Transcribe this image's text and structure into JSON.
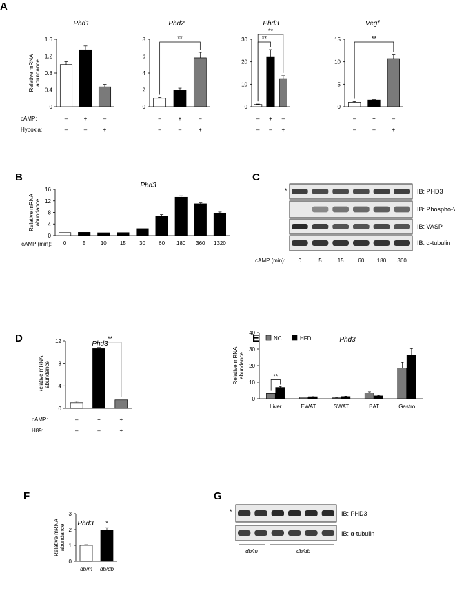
{
  "panels": {
    "A": "A",
    "B": "B",
    "C": "C",
    "D": "D",
    "E": "E",
    "F": "F",
    "G": "G"
  },
  "colors": {
    "ctrl": "#ffffff",
    "camp": "#000000",
    "hypoxia": "#7a7a7a",
    "nc": "#7a7a7a",
    "hfd": "#000000"
  },
  "chart_data": [
    {
      "id": "A1",
      "type": "bar",
      "title": "Phd1",
      "ylabel": "Relative mRNA abundance",
      "ylim": [
        0,
        1.6
      ],
      "yticks": [
        "0",
        "0.4",
        "0.8",
        "1.2",
        "1.6"
      ],
      "values": [
        1.0,
        1.35,
        0.47
      ],
      "errors": [
        0.07,
        0.09,
        0.06
      ],
      "fills": [
        "ctrl",
        "camp",
        "hypoxia"
      ],
      "sig": []
    },
    {
      "id": "A2",
      "type": "bar",
      "title": "Phd2",
      "ylim": [
        0,
        8
      ],
      "yticks": [
        "0",
        "2",
        "4",
        "6",
        "8"
      ],
      "values": [
        1.0,
        1.95,
        5.8
      ],
      "errors": [
        0.1,
        0.25,
        0.65
      ],
      "fills": [
        "ctrl",
        "camp",
        "hypoxia"
      ],
      "sig": [
        {
          "from": 0,
          "to": 2,
          "text": "**"
        }
      ]
    },
    {
      "id": "A3",
      "type": "bar",
      "title": "Phd3",
      "ylim": [
        0,
        30
      ],
      "yticks": [
        "0",
        "10",
        "20",
        "30"
      ],
      "values": [
        1.0,
        22.0,
        12.5
      ],
      "errors": [
        0.2,
        3.4,
        1.3
      ],
      "fills": [
        "ctrl",
        "camp",
        "hypoxia"
      ],
      "sig": [
        {
          "from": 0,
          "to": 1,
          "text": "**"
        },
        {
          "from": 0,
          "to": 2,
          "text": "**"
        }
      ]
    },
    {
      "id": "A4",
      "type": "bar",
      "title": "Vegf",
      "ylim": [
        0,
        15
      ],
      "yticks": [
        "0",
        "5",
        "10",
        "15"
      ],
      "values": [
        1.0,
        1.5,
        10.7
      ],
      "errors": [
        0.15,
        0.1,
        0.85
      ],
      "fills": [
        "ctrl",
        "camp",
        "hypoxia"
      ],
      "sig": [
        {
          "from": 0,
          "to": 2,
          "text": "**"
        }
      ]
    },
    {
      "id": "B",
      "type": "bar",
      "title": "Phd3",
      "ylabel": "Relative mRNA abundance",
      "ylim": [
        0,
        16
      ],
      "yticks": [
        "0",
        "4",
        "8",
        "12",
        "16"
      ],
      "xlabel": "cAMP (min):",
      "categories": [
        "0",
        "5",
        "10",
        "15",
        "30",
        "60",
        "180",
        "360",
        "1320"
      ],
      "values": [
        1.0,
        1.1,
        0.95,
        1.0,
        2.4,
        6.8,
        13.3,
        11.0,
        7.8
      ],
      "errors": [
        0,
        0,
        0,
        0,
        0,
        0.45,
        0.5,
        0.3,
        0.35
      ],
      "fills": [
        "ctrl",
        "camp",
        "camp",
        "camp",
        "camp",
        "camp",
        "camp",
        "camp",
        "camp"
      ]
    },
    {
      "id": "D",
      "type": "bar",
      "title": "Phd3",
      "ylabel": "Relative mRNA abundance",
      "ylim": [
        0,
        12
      ],
      "yticks": [
        "0",
        "4",
        "8",
        "12"
      ],
      "values": [
        1.0,
        10.6,
        1.5
      ],
      "errors": [
        0.25,
        0.2,
        0
      ],
      "fills": [
        "ctrl",
        "camp",
        "hypoxia"
      ],
      "sig": [
        {
          "from": 1,
          "to": 2,
          "text": "**"
        }
      ]
    },
    {
      "id": "E",
      "type": "bar",
      "title": "Phd3",
      "ylabel": "Relative mRNA abundance",
      "ylim": [
        0,
        40
      ],
      "yticks": [
        "0",
        "10",
        "20",
        "30",
        "40"
      ],
      "categories": [
        "Liver",
        "EWAT",
        "SWAT",
        "BAT",
        "Gastro"
      ],
      "series": [
        {
          "name": "NC",
          "values": [
            3.2,
            1.0,
            0.5,
            3.5,
            18.5
          ],
          "errors": [
            0.3,
            0.1,
            0.1,
            0.7,
            3.5
          ]
        },
        {
          "name": "HFD",
          "values": [
            6.8,
            1.2,
            1.3,
            1.7,
            26.5
          ],
          "errors": [
            0.5,
            0.1,
            0.2,
            0.4,
            3.8
          ]
        }
      ],
      "legend": "top-left",
      "sig": [
        {
          "from": 0,
          "to": 1,
          "text": "**"
        }
      ]
    },
    {
      "id": "F",
      "type": "bar",
      "title": "Phd3",
      "ylabel": "Relative mRNA abundance",
      "ylim": [
        0,
        3
      ],
      "yticks": [
        "0",
        "1",
        "2",
        "3"
      ],
      "categories": [
        "db/m",
        "db/db"
      ],
      "values": [
        1.0,
        1.98
      ],
      "errors": [
        0.04,
        0.14
      ],
      "fills": [
        "ctrl",
        "camp"
      ],
      "sig": [
        {
          "over": 1,
          "text": "*"
        }
      ]
    }
  ],
  "panelA": {
    "rows": [
      {
        "label": "cAMP:",
        "signs": [
          "–",
          "+",
          "–"
        ]
      },
      {
        "label": "Hypoxia:",
        "signs": [
          "–",
          "–",
          "+"
        ]
      }
    ]
  },
  "panelD": {
    "rows": [
      {
        "label": "cAMP:",
        "signs": [
          "–",
          "+",
          "+"
        ]
      },
      {
        "label": "H89:",
        "signs": [
          "–",
          "–",
          "+"
        ]
      }
    ]
  },
  "panelC": {
    "star": "*",
    "blots": [
      "IB: PHD3",
      "IB: Phospho-VASP",
      "IB: VASP",
      "IB: α-tubulin"
    ],
    "xlabel": "cAMP (min):",
    "lanes": [
      "0",
      "5",
      "15",
      "60",
      "180",
      "360"
    ]
  },
  "panelG": {
    "star": "*",
    "blots": [
      "IB: PHD3",
      "IB: α-tubulin"
    ],
    "groups": [
      "db/m",
      "db/db"
    ]
  }
}
